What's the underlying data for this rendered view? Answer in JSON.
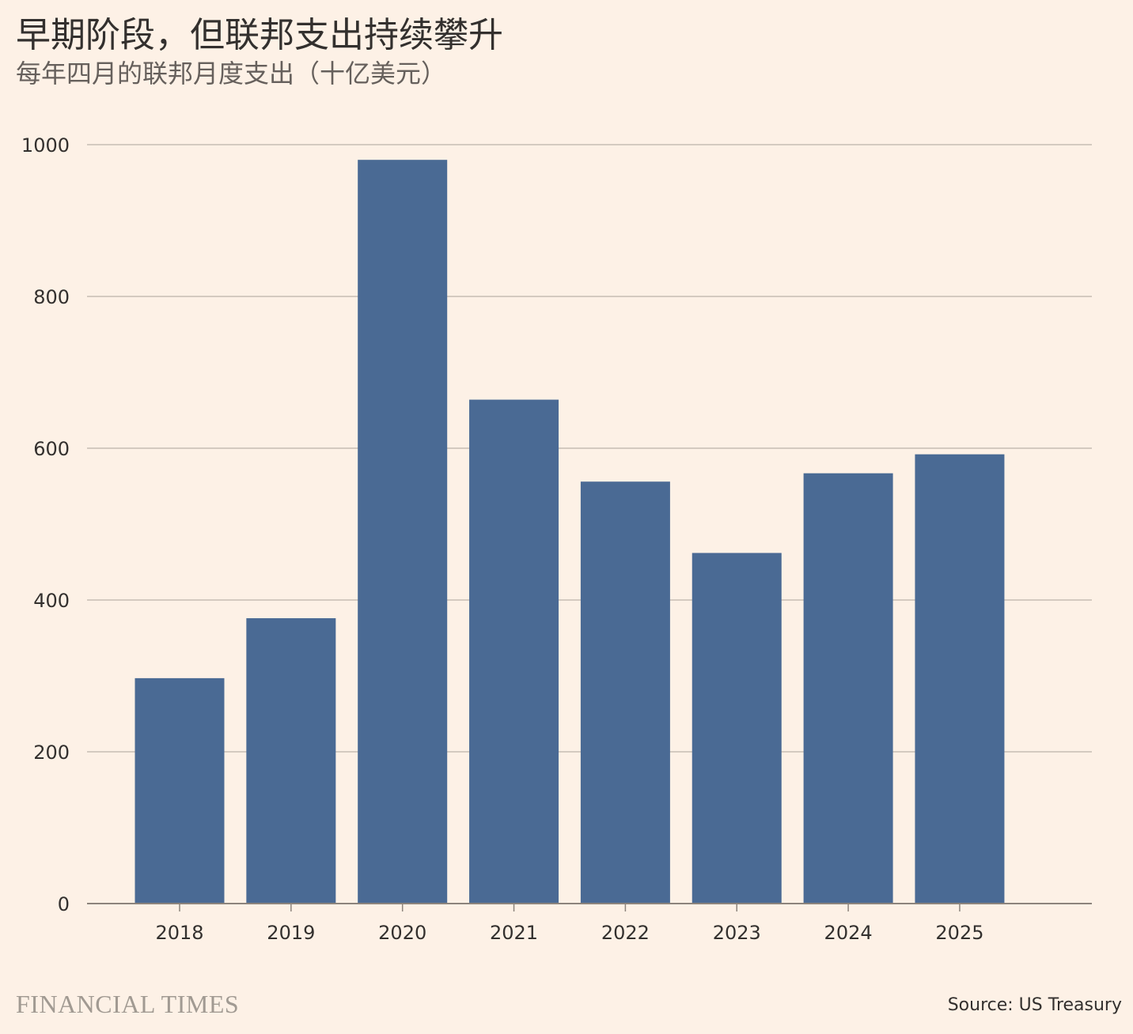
{
  "title": "早期阶段，但联邦支出持续攀升",
  "subtitle": "每年四月的联邦月度支出（十亿美元）",
  "brand": "FINANCIAL TIMES",
  "source": "Source: US Treasury",
  "colors": {
    "background": "#fdf1e6",
    "bar": "#4a6a94",
    "grid": "#c7bdb4",
    "axis": "#8c847c",
    "text": "#33302e"
  },
  "chart_data": {
    "type": "bar",
    "title": "早期阶段，但联邦支出持续攀升",
    "subtitle": "每年四月的联邦月度支出（十亿美元）",
    "categories": [
      "2018",
      "2019",
      "2020",
      "2021",
      "2022",
      "2023",
      "2024",
      "2025"
    ],
    "values": [
      297,
      376,
      980,
      664,
      556,
      462,
      567,
      592
    ],
    "ylim": [
      0,
      1000
    ],
    "yticks": [
      0,
      200,
      400,
      600,
      800,
      1000
    ],
    "grid": true,
    "xlabel": "",
    "ylabel": ""
  }
}
